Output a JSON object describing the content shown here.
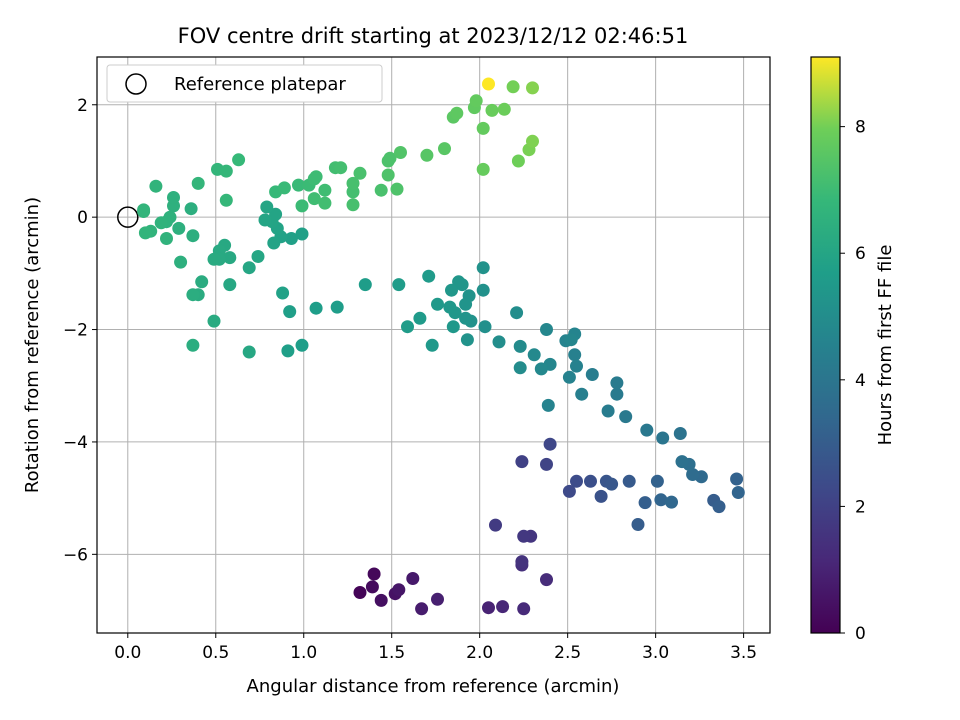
{
  "chart_data": {
    "type": "scatter",
    "title": "FOV centre drift starting at 2023/12/12 02:46:51",
    "xlabel": "Angular distance from reference (arcmin)",
    "ylabel": "Rotation from reference (arcmin)",
    "xlim": [
      -0.175,
      3.65
    ],
    "ylim": [
      -7.4,
      2.85
    ],
    "xticks": [
      0.0,
      0.5,
      1.0,
      1.5,
      2.0,
      2.5,
      3.0,
      3.5
    ],
    "xtick_labels": [
      "0.0",
      "0.5",
      "1.0",
      "1.5",
      "2.0",
      "2.5",
      "3.0",
      "3.5"
    ],
    "yticks": [
      -6,
      -4,
      -2,
      0,
      2
    ],
    "ytick_labels": [
      "−6",
      "−4",
      "−2",
      "0",
      "2"
    ],
    "grid": true,
    "legend": {
      "position": "top-left",
      "entries": [
        "Reference platepar"
      ]
    },
    "reference_point": {
      "x": 0.0,
      "y": 0.0
    },
    "colorbar": {
      "label": "Hours from first FF file",
      "colormap": "viridis",
      "range": [
        0,
        9.1
      ],
      "ticks": [
        0,
        2,
        4,
        6,
        8
      ],
      "tick_labels": [
        "0",
        "2",
        "4",
        "6",
        "8"
      ]
    },
    "points": [
      [
        1.32,
        -6.68,
        0.1
      ],
      [
        1.4,
        -6.35,
        0.2
      ],
      [
        1.39,
        -6.58,
        0.3
      ],
      [
        1.44,
        -6.82,
        0.4
      ],
      [
        1.52,
        -6.7,
        0.5
      ],
      [
        1.54,
        -6.63,
        0.6
      ],
      [
        1.62,
        -6.43,
        0.7
      ],
      [
        1.67,
        -6.97,
        0.8
      ],
      [
        1.76,
        -6.8,
        0.9
      ],
      [
        2.05,
        -6.95,
        1.0
      ],
      [
        2.13,
        -6.93,
        1.1
      ],
      [
        2.25,
        -6.97,
        1.2
      ],
      [
        2.38,
        -6.45,
        1.3
      ],
      [
        2.24,
        -6.19,
        1.4
      ],
      [
        2.24,
        -6.13,
        1.5
      ],
      [
        2.29,
        -5.68,
        1.6
      ],
      [
        2.25,
        -5.68,
        1.7
      ],
      [
        2.09,
        -5.48,
        1.8
      ],
      [
        2.24,
        -4.35,
        2.0
      ],
      [
        2.38,
        -4.4,
        2.1
      ],
      [
        2.4,
        -4.04,
        2.2
      ],
      [
        2.51,
        -4.88,
        2.3
      ],
      [
        2.55,
        -4.7,
        2.4
      ],
      [
        2.63,
        -4.7,
        2.5
      ],
      [
        2.69,
        -4.97,
        2.6
      ],
      [
        2.72,
        -4.7,
        2.7
      ],
      [
        2.75,
        -4.75,
        2.8
      ],
      [
        2.85,
        -4.7,
        2.9
      ],
      [
        2.9,
        -5.47,
        3.0
      ],
      [
        2.94,
        -5.08,
        3.1
      ],
      [
        3.01,
        -4.7,
        3.2
      ],
      [
        3.03,
        -5.03,
        3.3
      ],
      [
        3.09,
        -5.07,
        3.4
      ],
      [
        3.33,
        -5.04,
        3.0
      ],
      [
        3.36,
        -5.15,
        3.1
      ],
      [
        3.46,
        -4.66,
        3.2
      ],
      [
        3.47,
        -4.9,
        3.3
      ],
      [
        3.26,
        -4.62,
        3.5
      ],
      [
        3.21,
        -4.58,
        3.6
      ],
      [
        3.19,
        -4.4,
        3.7
      ],
      [
        3.15,
        -4.35,
        3.8
      ],
      [
        3.14,
        -3.85,
        3.9
      ],
      [
        3.04,
        -3.93,
        4.0
      ],
      [
        2.95,
        -3.79,
        4.1
      ],
      [
        2.83,
        -3.55,
        4.15
      ],
      [
        2.78,
        -3.15,
        4.2
      ],
      [
        2.78,
        -2.95,
        4.25
      ],
      [
        2.73,
        -3.45,
        4.3
      ],
      [
        2.64,
        -2.8,
        4.35
      ],
      [
        2.58,
        -3.15,
        4.4
      ],
      [
        2.54,
        -2.45,
        4.45
      ],
      [
        2.55,
        -2.65,
        4.5
      ],
      [
        2.51,
        -2.85,
        4.55
      ],
      [
        2.49,
        -2.2,
        4.6
      ],
      [
        2.54,
        -2.08,
        4.65
      ],
      [
        2.52,
        -2.18,
        4.7
      ],
      [
        2.39,
        -3.35,
        4.6
      ],
      [
        2.4,
        -2.62,
        4.7
      ],
      [
        2.38,
        -2.0,
        4.75
      ],
      [
        2.35,
        -2.7,
        4.8
      ],
      [
        2.31,
        -2.45,
        4.85
      ],
      [
        2.23,
        -2.3,
        4.9
      ],
      [
        2.23,
        -2.68,
        4.95
      ],
      [
        2.21,
        -1.7,
        5.0
      ],
      [
        2.11,
        -2.22,
        5.05
      ],
      [
        2.03,
        -1.95,
        5.1
      ],
      [
        2.02,
        -1.3,
        5.15
      ],
      [
        2.02,
        -0.9,
        5.2
      ],
      [
        1.95,
        -1.85,
        5.2
      ],
      [
        1.93,
        -2.18,
        5.25
      ],
      [
        1.94,
        -1.4,
        5.25
      ],
      [
        1.92,
        -1.55,
        5.3
      ],
      [
        1.92,
        -1.8,
        5.3
      ],
      [
        1.9,
        -1.2,
        5.35
      ],
      [
        1.88,
        -1.15,
        5.35
      ],
      [
        1.86,
        -1.7,
        5.4
      ],
      [
        1.84,
        -1.3,
        5.4
      ],
      [
        1.85,
        -1.95,
        5.45
      ],
      [
        1.83,
        -1.6,
        5.45
      ],
      [
        1.76,
        -1.55,
        5.5
      ],
      [
        1.73,
        -2.28,
        5.5
      ],
      [
        1.71,
        -1.05,
        5.55
      ],
      [
        1.66,
        -1.8,
        5.55
      ],
      [
        1.59,
        -1.95,
        5.6
      ],
      [
        1.54,
        -1.2,
        5.6
      ],
      [
        1.35,
        -1.2,
        5.65
      ],
      [
        1.19,
        -1.6,
        5.65
      ],
      [
        1.07,
        -1.62,
        5.7
      ],
      [
        0.99,
        -2.28,
        5.7
      ],
      [
        0.92,
        -1.68,
        5.75
      ],
      [
        0.91,
        -2.38,
        5.75
      ],
      [
        0.99,
        -0.3,
        5.8
      ],
      [
        0.93,
        -0.38,
        5.8
      ],
      [
        0.88,
        -1.35,
        5.85
      ],
      [
        0.87,
        -0.35,
        5.85
      ],
      [
        0.85,
        -0.2,
        5.9
      ],
      [
        0.83,
        -0.46,
        5.9
      ],
      [
        0.82,
        -0.08,
        5.95
      ],
      [
        0.84,
        0.05,
        5.95
      ],
      [
        0.79,
        0.18,
        6.0
      ],
      [
        0.78,
        -0.05,
        6.0
      ],
      [
        0.74,
        -0.7,
        6.05
      ],
      [
        0.69,
        -0.9,
        6.05
      ],
      [
        0.69,
        -2.4,
        6.1
      ],
      [
        0.58,
        -1.2,
        6.1
      ],
      [
        0.58,
        -0.72,
        6.15
      ],
      [
        0.55,
        -0.5,
        6.15
      ],
      [
        0.52,
        -0.6,
        6.2
      ],
      [
        0.52,
        -0.75,
        6.2
      ],
      [
        0.49,
        -0.75,
        6.25
      ],
      [
        0.49,
        -1.85,
        6.25
      ],
      [
        0.42,
        -1.15,
        6.3
      ],
      [
        0.4,
        -1.38,
        6.3
      ],
      [
        0.37,
        -1.38,
        6.35
      ],
      [
        0.37,
        -2.28,
        6.35
      ],
      [
        0.37,
        -0.33,
        6.4
      ],
      [
        0.36,
        0.15,
        6.4
      ],
      [
        0.3,
        -0.8,
        6.45
      ],
      [
        0.29,
        -0.2,
        6.45
      ],
      [
        0.26,
        0.2,
        6.5
      ],
      [
        0.26,
        0.35,
        6.5
      ],
      [
        0.24,
        0.0,
        6.55
      ],
      [
        0.22,
        -0.08,
        6.55
      ],
      [
        0.22,
        -0.38,
        6.6
      ],
      [
        0.19,
        -0.1,
        6.6
      ],
      [
        0.16,
        0.55,
        6.65
      ],
      [
        0.13,
        -0.25,
        6.65
      ],
      [
        0.1,
        -0.28,
        6.7
      ],
      [
        0.09,
        0.1,
        6.7
      ],
      [
        0.09,
        0.13,
        6.7
      ],
      [
        0.4,
        0.6,
        6.75
      ],
      [
        0.51,
        0.85,
        6.75
      ],
      [
        0.56,
        0.82,
        6.8
      ],
      [
        0.56,
        0.3,
        6.8
      ],
      [
        0.63,
        1.02,
        6.85
      ],
      [
        0.84,
        0.45,
        6.85
      ],
      [
        0.89,
        0.52,
        6.9
      ],
      [
        0.97,
        0.57,
        6.9
      ],
      [
        0.99,
        0.2,
        6.95
      ],
      [
        1.03,
        0.57,
        6.95
      ],
      [
        1.06,
        0.68,
        7.0
      ],
      [
        1.07,
        0.72,
        7.0
      ],
      [
        1.06,
        0.33,
        7.05
      ],
      [
        1.12,
        0.48,
        7.05
      ],
      [
        1.12,
        0.25,
        7.1
      ],
      [
        1.18,
        0.88,
        7.1
      ],
      [
        1.21,
        0.88,
        7.15
      ],
      [
        1.28,
        0.45,
        7.15
      ],
      [
        1.28,
        0.6,
        7.2
      ],
      [
        1.28,
        0.22,
        7.2
      ],
      [
        1.32,
        0.78,
        7.25
      ],
      [
        1.44,
        0.48,
        7.25
      ],
      [
        1.48,
        1.0,
        7.3
      ],
      [
        1.49,
        1.05,
        7.3
      ],
      [
        1.48,
        0.75,
        7.35
      ],
      [
        1.53,
        0.5,
        7.35
      ],
      [
        1.55,
        1.15,
        7.4
      ],
      [
        1.7,
        1.1,
        7.5
      ],
      [
        1.8,
        1.22,
        7.55
      ],
      [
        1.85,
        1.78,
        7.6
      ],
      [
        1.87,
        1.85,
        7.65
      ],
      [
        1.97,
        1.95,
        7.7
      ],
      [
        1.98,
        2.07,
        7.75
      ],
      [
        2.02,
        1.58,
        7.75
      ],
      [
        2.02,
        0.85,
        7.8
      ],
      [
        2.07,
        1.9,
        7.85
      ],
      [
        2.14,
        1.92,
        7.9
      ],
      [
        2.22,
        1.0,
        7.95
      ],
      [
        2.19,
        2.32,
        8.0
      ],
      [
        2.28,
        1.2,
        8.05
      ],
      [
        2.3,
        1.35,
        8.1
      ],
      [
        2.3,
        2.3,
        8.15
      ],
      [
        2.05,
        2.37,
        9.1
      ]
    ]
  }
}
